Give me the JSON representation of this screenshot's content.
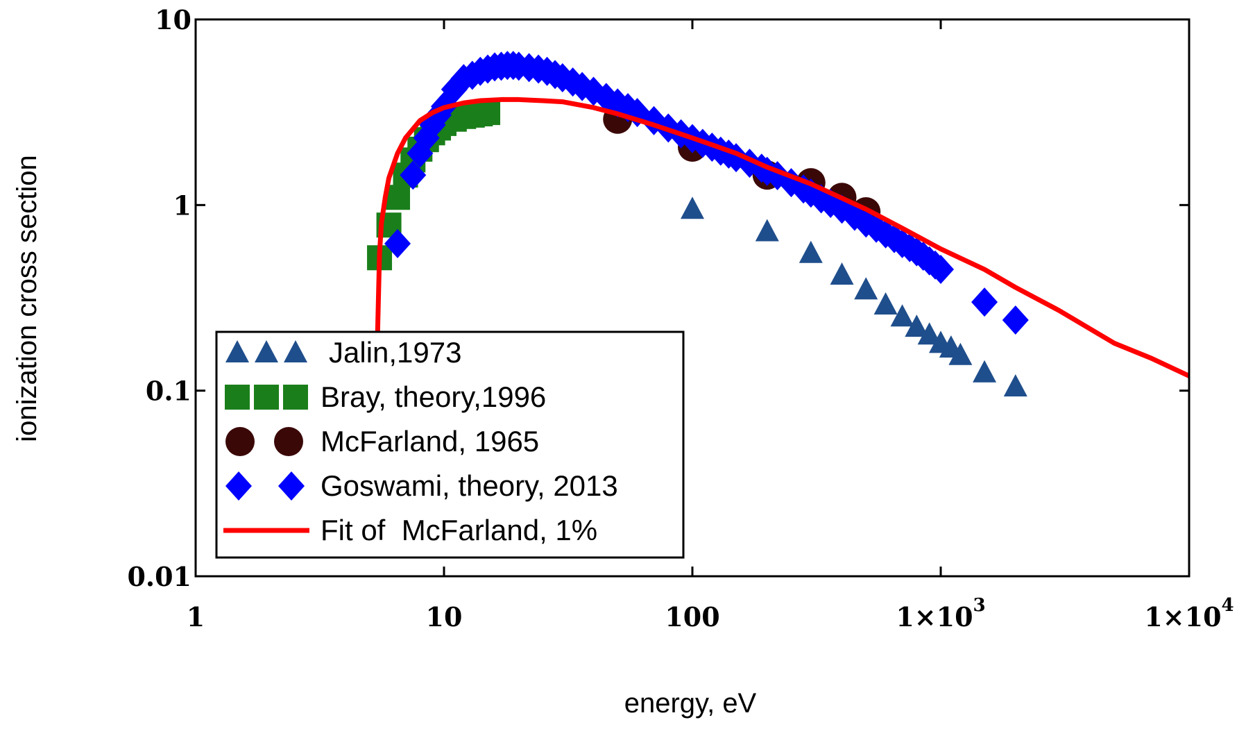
{
  "chart_data": {
    "type": "scatter",
    "xscale": "log",
    "yscale": "log",
    "xlabel": "energy, eV",
    "ylabel": "ionization cross section",
    "xlim": [
      1,
      10000
    ],
    "ylim": [
      0.01,
      10
    ],
    "grid": false,
    "legend_position": "bottom-left",
    "x_ticks": [
      {
        "value": 1,
        "base": "1",
        "sup": ""
      },
      {
        "value": 10,
        "base": "10",
        "sup": ""
      },
      {
        "value": 100,
        "base": "100",
        "sup": ""
      },
      {
        "value": 1000,
        "base": "1×10",
        "sup": "3"
      },
      {
        "value": 10000,
        "base": "1×10",
        "sup": "4"
      }
    ],
    "y_ticks": [
      {
        "value": 0.01,
        "label": "0.01"
      },
      {
        "value": 0.1,
        "label": "0.1"
      },
      {
        "value": 1,
        "label": "1"
      },
      {
        "value": 10,
        "label": "10"
      }
    ],
    "series": [
      {
        "name": "Jalin,1973",
        "marker": "triangle",
        "color": "#1f4e8c",
        "x": [
          100,
          200,
          300,
          400,
          500,
          600,
          700,
          800,
          900,
          1000,
          1100,
          1200,
          1500,
          2000
        ],
        "y": [
          0.95,
          0.72,
          0.55,
          0.42,
          0.35,
          0.29,
          0.25,
          0.22,
          0.2,
          0.18,
          0.17,
          0.155,
          0.125,
          0.105
        ]
      },
      {
        "name": "Bray, theory,1996",
        "marker": "square",
        "color": "#1a7f1a",
        "x": [
          5.5,
          6,
          6.5,
          7,
          7.5,
          8,
          8.5,
          9,
          9.5,
          10,
          11,
          12,
          13,
          14,
          15
        ],
        "y": [
          0.52,
          0.78,
          1.1,
          1.45,
          1.75,
          2.0,
          2.25,
          2.45,
          2.6,
          2.75,
          2.9,
          3.0,
          3.05,
          3.1,
          3.15
        ]
      },
      {
        "name": "McFarland, 1965",
        "marker": "circle",
        "color": "#3b0808",
        "x": [
          50,
          100,
          200,
          300,
          400,
          500
        ],
        "y": [
          2.9,
          2.05,
          1.45,
          1.32,
          1.1,
          0.92
        ]
      },
      {
        "name": "Goswami, theory, 2013",
        "marker": "diamond",
        "color": "#0000ff",
        "x": [
          6.5,
          7.5,
          8,
          8.5,
          9,
          9.5,
          10,
          11,
          12,
          13,
          14,
          15,
          16,
          17,
          18,
          19,
          20,
          22,
          24,
          26,
          28,
          30,
          33,
          36,
          40,
          45,
          50,
          55,
          60,
          70,
          80,
          90,
          100,
          110,
          120,
          130,
          140,
          150,
          170,
          190,
          200,
          220,
          250,
          280,
          300,
          330,
          360,
          400,
          450,
          500,
          550,
          600,
          650,
          700,
          750,
          800,
          850,
          900,
          950,
          1000,
          1500,
          2000
        ],
        "y": [
          0.62,
          1.45,
          1.9,
          2.3,
          2.7,
          3.05,
          3.4,
          4.2,
          4.8,
          5.0,
          5.25,
          5.4,
          5.55,
          5.6,
          5.65,
          5.65,
          5.6,
          5.5,
          5.4,
          5.25,
          5.05,
          4.85,
          4.6,
          4.35,
          4.1,
          3.8,
          3.55,
          3.35,
          3.15,
          2.85,
          2.6,
          2.42,
          2.28,
          2.15,
          2.05,
          1.95,
          1.88,
          1.8,
          1.68,
          1.58,
          1.52,
          1.44,
          1.32,
          1.22,
          1.16,
          1.08,
          1.02,
          0.95,
          0.87,
          0.8,
          0.75,
          0.7,
          0.66,
          0.62,
          0.59,
          0.56,
          0.53,
          0.5,
          0.475,
          0.45,
          0.3,
          0.24
        ]
      },
      {
        "name": "Fit of  McFarland, 1%",
        "marker": "line",
        "color": "#ff0000",
        "x": [
          5.4,
          5.5,
          5.6,
          5.8,
          6,
          6.5,
          7,
          8,
          9,
          10,
          12,
          14,
          17,
          20,
          25,
          30,
          40,
          50,
          70,
          100,
          150,
          200,
          300,
          500,
          700,
          1000,
          1500,
          2000,
          3000,
          5000,
          7000,
          10000
        ],
        "y": [
          0.2,
          0.55,
          0.8,
          1.1,
          1.4,
          1.9,
          2.3,
          2.85,
          3.15,
          3.35,
          3.55,
          3.65,
          3.7,
          3.7,
          3.65,
          3.6,
          3.35,
          3.1,
          2.7,
          2.3,
          1.9,
          1.6,
          1.3,
          0.95,
          0.75,
          0.58,
          0.45,
          0.36,
          0.27,
          0.18,
          0.15,
          0.12
        ]
      }
    ]
  }
}
